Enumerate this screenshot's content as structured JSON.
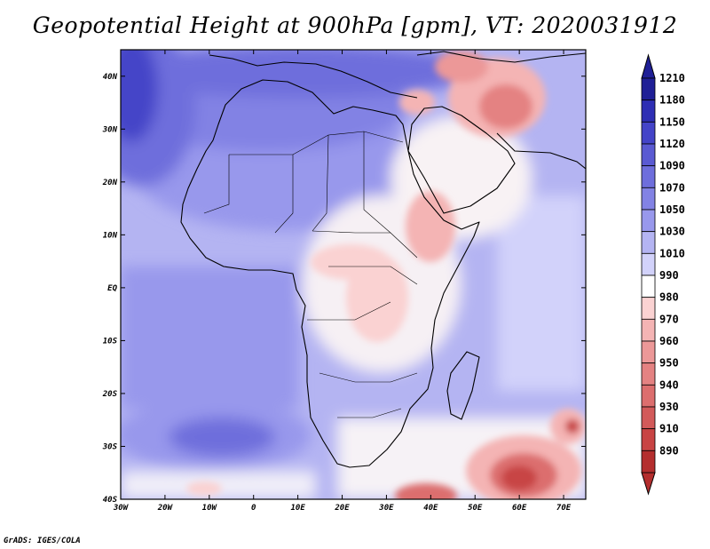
{
  "title": "Geopotential Height at 900hPa [gpm], VT: 2020031912",
  "credit": "GrADS: IGES/COLA",
  "chart_data": {
    "type": "heatmap",
    "variable": "Geopotential Height",
    "level": "900hPa",
    "units": "gpm",
    "valid_time": "2020031912",
    "xlim": [
      -30,
      75
    ],
    "ylim": [
      -40,
      45
    ],
    "lon_ticks": [
      "30W",
      "20W",
      "10W",
      "0",
      "10E",
      "20E",
      "30E",
      "40E",
      "50E",
      "60E",
      "70E"
    ],
    "lat_ticks": [
      "40N",
      "30N",
      "20N",
      "10N",
      "EQ",
      "10S",
      "20S",
      "30S",
      "40S"
    ],
    "colorbar": {
      "labels": [
        "1210",
        "1180",
        "1150",
        "1120",
        "1090",
        "1070",
        "1050",
        "1030",
        "1010",
        "990",
        "980",
        "970",
        "960",
        "950",
        "940",
        "930",
        "910",
        "890"
      ],
      "colors": [
        "#1f1f96",
        "#2e2eb4",
        "#4444c8",
        "#5a5ad2",
        "#6e6edc",
        "#8282e4",
        "#9898ec",
        "#b4b4f2",
        "#d2d2fa",
        "#ffffff",
        "#fad2d2",
        "#f4b4b4",
        "#ec9898",
        "#e48282",
        "#dc6e6e",
        "#d25a5a",
        "#c84444",
        "#b42e2e"
      ]
    },
    "features": [
      {
        "name": "low-south-indian-ocean",
        "lon": 59,
        "lat": -34,
        "value": 940
      },
      {
        "name": "low-southeast",
        "lon": 71,
        "lat": -26,
        "value": 930
      },
      {
        "name": "high-south-atlantic",
        "lon": -13,
        "lat": -27,
        "value": 1090
      },
      {
        "name": "high-north-atlantic",
        "lon": -27,
        "lat": 40,
        "value": 1120
      },
      {
        "name": "low-iran",
        "lon": 57,
        "lat": 32,
        "value": 960
      },
      {
        "name": "low-ethiopia",
        "lon": 38,
        "lat": 10,
        "value": 980
      },
      {
        "name": "low-east-africa",
        "lon": 30,
        "lat": 0,
        "value": 980
      }
    ]
  }
}
